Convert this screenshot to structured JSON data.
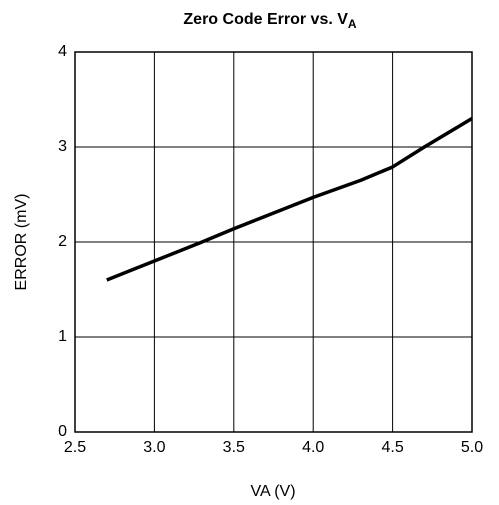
{
  "chart_data": {
    "type": "line",
    "title": "Zero Code Error vs. V",
    "title_subscript": "A",
    "x_label": "VA (V)",
    "y_label": "ERROR (mV)",
    "x": [
      2.7,
      3.0,
      3.3,
      3.5,
      4.0,
      4.3,
      4.5,
      4.7,
      5.0
    ],
    "series": [
      {
        "color": "#000000",
        "values": [
          1.6,
          1.8,
          2.0,
          2.14,
          2.47,
          2.65,
          2.79,
          3.0,
          3.3
        ]
      }
    ],
    "xlim": [
      2.5,
      5.0
    ],
    "xticks": [
      2.5,
      {
        "value": 3,
        "label": "3.0"
      },
      3.5,
      {
        "value": 4,
        "label": "4.0"
      },
      4.5,
      {
        "value": 5,
        "label": "5.0"
      }
    ],
    "ylim": [
      0,
      4
    ],
    "yticks": [
      0,
      1,
      2,
      3,
      4
    ],
    "grid": true
  }
}
